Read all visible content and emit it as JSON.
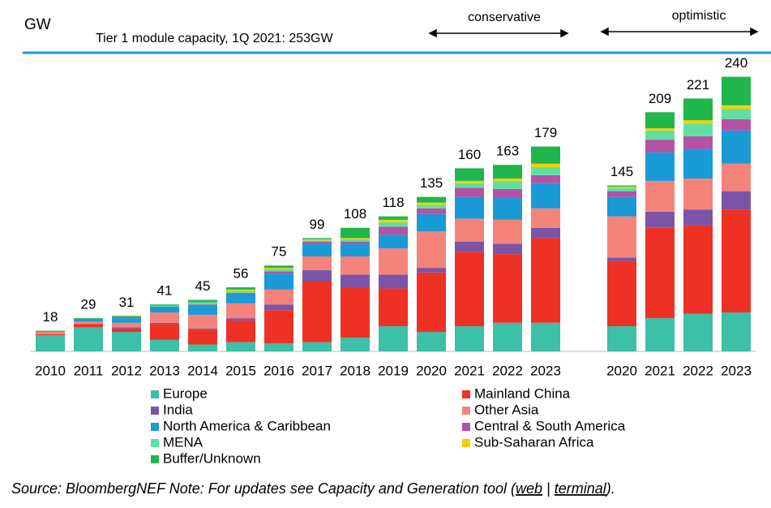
{
  "chart_data": {
    "type": "stacked_bar",
    "unit_label": "GW",
    "subtitle": "Tier 1 module capacity, 1Q 2021: 253GW",
    "scenario_labels": [
      "conservative",
      "optimistic"
    ],
    "categories": [
      "2010",
      "2011",
      "2012",
      "2013",
      "2014",
      "2015",
      "2016",
      "2017",
      "2018",
      "2019",
      "2020",
      "2021",
      "2022",
      "2023",
      "2020",
      "2021",
      "2022",
      "2023"
    ],
    "totals": [
      18,
      29,
      31,
      41,
      45,
      56,
      75,
      99,
      108,
      118,
      135,
      160,
      163,
      179,
      145,
      209,
      221,
      240
    ],
    "series": [
      {
        "name": "Europe",
        "color": "#3dbfa8",
        "values": [
          14,
          21,
          17,
          10,
          6,
          8,
          7,
          8,
          12,
          22,
          17,
          22,
          25,
          25,
          22,
          29,
          33,
          34
        ]
      },
      {
        "name": "Mainland China",
        "color": "#ee3124",
        "values": [
          1,
          3,
          3,
          14,
          13,
          19,
          29,
          53,
          44,
          33,
          52,
          65,
          60,
          74,
          57,
          79,
          77,
          90
        ]
      },
      {
        "name": "India",
        "color": "#7b54a8",
        "values": [
          0,
          0,
          1,
          1,
          1,
          2,
          5,
          10,
          11,
          12,
          4,
          9,
          9,
          9,
          3,
          14,
          14,
          16
        ]
      },
      {
        "name": "Other Asia",
        "color": "#f4847a",
        "values": [
          2,
          2,
          4,
          9,
          12,
          13,
          13,
          12,
          16,
          23,
          32,
          20,
          21,
          17,
          36,
          27,
          27,
          24
        ]
      },
      {
        "name": "North America & Caribbean",
        "color": "#1a9ad6",
        "values": [
          0,
          2,
          4,
          5,
          8,
          8,
          14,
          11,
          11,
          12,
          15,
          19,
          19,
          22,
          17,
          25,
          26,
          29
        ]
      },
      {
        "name": "Central & South America",
        "color": "#b452a6",
        "values": [
          0,
          0,
          1,
          0,
          1,
          1,
          2,
          2,
          2,
          7,
          5,
          8,
          8,
          7,
          5,
          11,
          11,
          10
        ]
      },
      {
        "name": "MENA",
        "color": "#5fe0a0",
        "values": [
          0,
          0,
          0,
          1,
          2,
          2,
          2,
          1,
          2,
          4,
          3,
          4,
          7,
          7,
          3,
          8,
          11,
          9
        ]
      },
      {
        "name": "Sub-Saharan Africa",
        "color": "#f5d000",
        "values": [
          0,
          0,
          0,
          0,
          0,
          1,
          1,
          1,
          1,
          2,
          2,
          2,
          2,
          3,
          1,
          2,
          3,
          3
        ]
      },
      {
        "name": "Buffer/Unknown",
        "color": "#1fb64b",
        "values": [
          1,
          1,
          1,
          1,
          2,
          2,
          2,
          1,
          9,
          3,
          5,
          11,
          12,
          15,
          1,
          14,
          19,
          25
        ]
      }
    ],
    "source": [
      "Source: BloombergNEF Note: For updates see Capacity and Generation tool (",
      "web",
      " | ",
      "terminal",
      ")."
    ]
  }
}
